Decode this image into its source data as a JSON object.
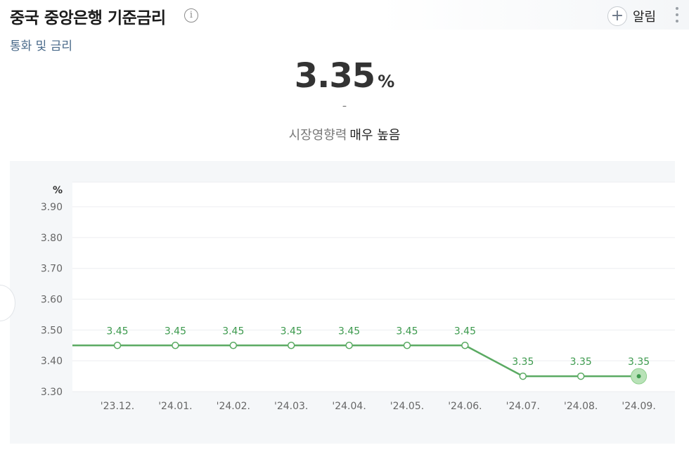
{
  "header": {
    "title": "중국 중앙은행 기준금리",
    "info_icon": "info-icon",
    "alert_label": "알림",
    "alert_icon": "plus-icon",
    "more_icon": "more-vertical-icon"
  },
  "category": "통화 및 금리",
  "summary": {
    "value": "3.35",
    "unit": "%",
    "change": "-",
    "impact_label": "시장영향력",
    "impact_value": "매우 높음"
  },
  "colors": {
    "line": "#5aaa62",
    "label": "#3d9a4e",
    "highlight": "#b9e2b8"
  },
  "chart_data": {
    "type": "line",
    "ylabel": "%",
    "ylim": [
      3.3,
      3.98
    ],
    "yticks": [
      "3.30",
      "3.40",
      "3.50",
      "3.60",
      "3.70",
      "3.80",
      "3.90"
    ],
    "categories": [
      "'23.12.",
      "'24.01.",
      "'24.02.",
      "'24.03.",
      "'24.04.",
      "'24.05.",
      "'24.06.",
      "'24.07.",
      "'24.08.",
      "'24.09."
    ],
    "values": [
      3.45,
      3.45,
      3.45,
      3.45,
      3.45,
      3.45,
      3.45,
      3.35,
      3.35,
      3.35
    ],
    "value_labels": [
      "3.45",
      "3.45",
      "3.45",
      "3.45",
      "3.45",
      "3.45",
      "3.45",
      "3.35",
      "3.35",
      "3.35"
    ],
    "grid": true,
    "highlight_last": true
  }
}
